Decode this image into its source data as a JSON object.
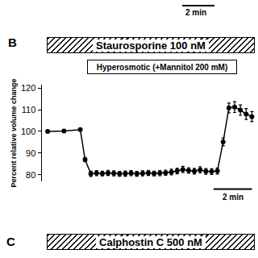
{
  "chart_data": {
    "type": "line",
    "panel": "B",
    "bars": [
      "Staurosporine 100 nM",
      "Hyperosmotic (+Mannitol 200 mM)"
    ],
    "y_label": "Percent relative volume change",
    "x": [
      0,
      0.85,
      1.7,
      1.95,
      2.25,
      2.55,
      2.85,
      3.15,
      3.45,
      3.75,
      4.05,
      4.35,
      4.65,
      4.95,
      5.25,
      5.55,
      5.85,
      6.15,
      6.45,
      6.75,
      7.05,
      7.35,
      7.65,
      7.95,
      8.25,
      8.55,
      8.85,
      9.15,
      9.45,
      9.75,
      10.05,
      10.35,
      10.65
    ],
    "values": [
      100,
      100.2,
      100.8,
      87,
      80.5,
      80.8,
      80.6,
      80.9,
      80.7,
      80.5,
      80.6,
      80.8,
      80.5,
      80.7,
      80.9,
      80.6,
      80.8,
      81.0,
      81.3,
      81.8,
      82.5,
      82.0,
      81.7,
      82.3,
      81.6,
      81.5,
      81.8,
      95.2,
      110.8,
      111.2,
      109.8,
      108.0,
      106.8
    ],
    "errors": [
      0.3,
      0.5,
      0.6,
      1.0,
      1.2,
      1.2,
      1.1,
      1.2,
      1.2,
      1.1,
      1.2,
      1.2,
      1.1,
      1.2,
      1.2,
      1.1,
      1.2,
      1.2,
      1.3,
      1.3,
      1.4,
      1.3,
      1.3,
      1.4,
      1.3,
      1.3,
      1.4,
      1.8,
      2.2,
      2.5,
      2.4,
      2.5,
      2.3
    ],
    "xlim": [
      -0.3,
      10.8
    ],
    "ylim": [
      77,
      121.5
    ],
    "yticks": [
      80,
      90,
      100,
      110,
      120
    ],
    "tick_labels": "y",
    "color": "#000000",
    "marker": "circle",
    "scale_bar": {
      "label": "2 min",
      "length": 2
    },
    "previous_panel": {
      "scale_bar": "2 min"
    },
    "next_panel": {
      "label": "C",
      "bar": "Calphostin C 500 nM"
    }
  }
}
